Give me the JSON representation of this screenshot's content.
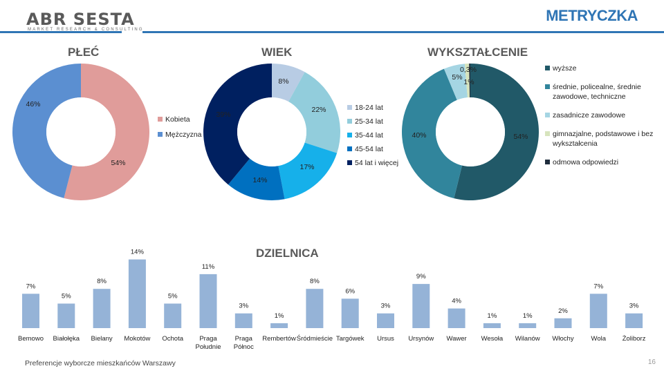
{
  "header": {
    "logo": "ABR SESTA",
    "logo_tagline": "MARKET RESEARCH & CONSULTING",
    "title": "METRYCZKA"
  },
  "footer": {
    "text": "Preferencje wyborcze mieszkańców Warszawy",
    "page_number": "16"
  },
  "chart_data": [
    {
      "type": "pie",
      "title": "PŁEĆ",
      "categories": [
        "Kobieta",
        "Mężczyzna"
      ],
      "values": [
        54,
        46
      ],
      "labels": [
        "54%",
        "46%"
      ],
      "colors": [
        "#e09c9a",
        "#5b8fd1"
      ],
      "legend": "right"
    },
    {
      "type": "pie",
      "title": "WIEK",
      "categories": [
        "18-24 lat",
        "25-34 lat",
        "35-44 lat",
        "45-54 lat",
        "54 lat i więcej"
      ],
      "values": [
        8,
        22,
        17,
        14,
        39
      ],
      "labels": [
        "8%",
        "22%",
        "17%",
        "14%",
        "39%"
      ],
      "colors": [
        "#b8cce4",
        "#92cddc",
        "#16b0ea",
        "#0070c0",
        "#002060"
      ],
      "legend": "right"
    },
    {
      "type": "pie",
      "title": "WYKSZTAŁCENIE",
      "categories": [
        "wyższe",
        "średnie, policealne, średnie zawodowe, techniczne",
        "zasadnicze zawodowe",
        "gimnazjalne, podstawowe i bez wykształcenia",
        "odmowa odpowiedzi"
      ],
      "values": [
        54,
        40,
        5,
        1,
        0.3
      ],
      "labels": [
        "54%",
        "40%",
        "5%",
        "1%",
        "0,3%"
      ],
      "colors": [
        "#215968",
        "#31859c",
        "#a5d5e3",
        "#d7e4bd",
        "#1f2d3d"
      ],
      "legend": "right"
    },
    {
      "type": "bar",
      "title": "DZIELNICA",
      "categories": [
        "Bemowo",
        "Białołęka",
        "Bielany",
        "Mokotów",
        "Ochota",
        "Praga Południe",
        "Praga Północ",
        "Rembertów",
        "Śródmieście",
        "Targówek",
        "Ursus",
        "Ursynów",
        "Wawer",
        "Wesoła",
        "Wilanów",
        "Włochy",
        "Wola",
        "Żoliborz"
      ],
      "values": [
        7,
        5,
        8,
        14,
        5,
        11,
        3,
        1,
        8,
        6,
        3,
        9,
        4,
        1,
        1,
        2,
        7,
        3
      ],
      "labels": [
        "7%",
        "5%",
        "8%",
        "14%",
        "5%",
        "11%",
        "3%",
        "1%",
        "8%",
        "6%",
        "3%",
        "9%",
        "4%",
        "1%",
        "1%",
        "2%",
        "7%",
        "3%"
      ],
      "color": "#95b3d7",
      "legend": "none"
    }
  ]
}
